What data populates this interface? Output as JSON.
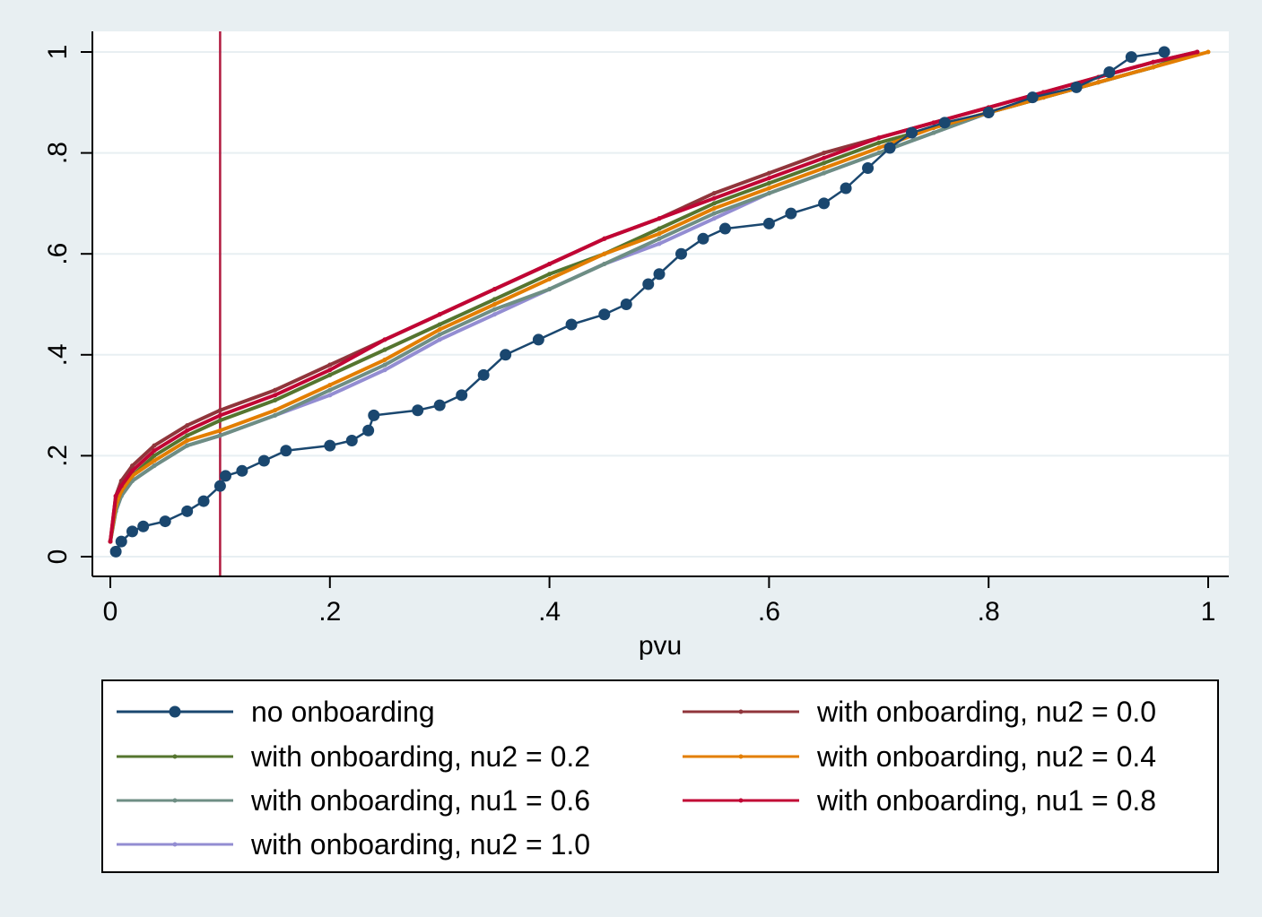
{
  "chart_data": {
    "type": "line",
    "xlabel": "pvu",
    "ylabel": "",
    "xlim": [
      0,
      1
    ],
    "ylim": [
      0,
      1
    ],
    "x_ticks": [
      {
        "value": 0,
        "label": "0"
      },
      {
        "value": 0.2,
        "label": ".2"
      },
      {
        "value": 0.4,
        "label": ".4"
      },
      {
        "value": 0.6,
        "label": ".6"
      },
      {
        "value": 0.8,
        "label": ".8"
      },
      {
        "value": 1,
        "label": "1"
      }
    ],
    "y_ticks": [
      {
        "value": 0,
        "label": "0"
      },
      {
        "value": 0.2,
        "label": ".2"
      },
      {
        "value": 0.4,
        "label": ".4"
      },
      {
        "value": 0.6,
        "label": ".6"
      },
      {
        "value": 0.8,
        "label": ".8"
      },
      {
        "value": 1,
        "label": "1"
      }
    ],
    "grid": "horizontal",
    "legend_position": "bottom",
    "reference_line": {
      "axis": "x",
      "value": 0.1,
      "color": "#b01a3f"
    },
    "series": [
      {
        "name": "no onboarding",
        "color": "#1a476f",
        "marker": "large",
        "points": [
          [
            0.005,
            0.01
          ],
          [
            0.01,
            0.03
          ],
          [
            0.02,
            0.05
          ],
          [
            0.03,
            0.06
          ],
          [
            0.05,
            0.07
          ],
          [
            0.07,
            0.09
          ],
          [
            0.085,
            0.11
          ],
          [
            0.1,
            0.14
          ],
          [
            0.105,
            0.16
          ],
          [
            0.12,
            0.17
          ],
          [
            0.14,
            0.19
          ],
          [
            0.16,
            0.21
          ],
          [
            0.2,
            0.22
          ],
          [
            0.22,
            0.23
          ],
          [
            0.235,
            0.25
          ],
          [
            0.24,
            0.28
          ],
          [
            0.28,
            0.29
          ],
          [
            0.3,
            0.3
          ],
          [
            0.32,
            0.32
          ],
          [
            0.34,
            0.36
          ],
          [
            0.36,
            0.4
          ],
          [
            0.39,
            0.43
          ],
          [
            0.42,
            0.46
          ],
          [
            0.45,
            0.48
          ],
          [
            0.47,
            0.5
          ],
          [
            0.49,
            0.54
          ],
          [
            0.5,
            0.56
          ],
          [
            0.52,
            0.6
          ],
          [
            0.54,
            0.63
          ],
          [
            0.56,
            0.65
          ],
          [
            0.6,
            0.66
          ],
          [
            0.62,
            0.68
          ],
          [
            0.65,
            0.7
          ],
          [
            0.67,
            0.73
          ],
          [
            0.69,
            0.77
          ],
          [
            0.71,
            0.81
          ],
          [
            0.73,
            0.84
          ],
          [
            0.76,
            0.86
          ],
          [
            0.8,
            0.88
          ],
          [
            0.84,
            0.91
          ],
          [
            0.88,
            0.93
          ],
          [
            0.91,
            0.96
          ],
          [
            0.93,
            0.99
          ],
          [
            0.96,
            1.0
          ]
        ]
      },
      {
        "name": "with onboarding, nu2 = 0.0",
        "color": "#90353b",
        "points": [
          [
            0,
            0.03
          ],
          [
            0.005,
            0.12
          ],
          [
            0.01,
            0.15
          ],
          [
            0.02,
            0.18
          ],
          [
            0.04,
            0.22
          ],
          [
            0.07,
            0.26
          ],
          [
            0.1,
            0.29
          ],
          [
            0.15,
            0.33
          ],
          [
            0.2,
            0.38
          ],
          [
            0.25,
            0.43
          ],
          [
            0.3,
            0.48
          ],
          [
            0.35,
            0.53
          ],
          [
            0.4,
            0.58
          ],
          [
            0.45,
            0.63
          ],
          [
            0.5,
            0.67
          ],
          [
            0.55,
            0.72
          ],
          [
            0.6,
            0.76
          ],
          [
            0.65,
            0.8
          ],
          [
            0.7,
            0.83
          ],
          [
            0.75,
            0.86
          ],
          [
            0.8,
            0.89
          ],
          [
            0.85,
            0.92
          ],
          [
            0.9,
            0.95
          ],
          [
            0.95,
            0.98
          ],
          [
            0.99,
            1.0
          ]
        ]
      },
      {
        "name": "with onboarding, nu2 = 0.2",
        "color": "#55752f",
        "points": [
          [
            0,
            0.03
          ],
          [
            0.005,
            0.1
          ],
          [
            0.01,
            0.13
          ],
          [
            0.02,
            0.16
          ],
          [
            0.04,
            0.2
          ],
          [
            0.07,
            0.24
          ],
          [
            0.1,
            0.27
          ],
          [
            0.15,
            0.31
          ],
          [
            0.2,
            0.36
          ],
          [
            0.25,
            0.41
          ],
          [
            0.3,
            0.46
          ],
          [
            0.35,
            0.51
          ],
          [
            0.4,
            0.56
          ],
          [
            0.45,
            0.6
          ],
          [
            0.5,
            0.65
          ],
          [
            0.55,
            0.7
          ],
          [
            0.6,
            0.74
          ],
          [
            0.65,
            0.78
          ],
          [
            0.7,
            0.82
          ],
          [
            0.75,
            0.85
          ],
          [
            0.8,
            0.88
          ],
          [
            0.85,
            0.91
          ],
          [
            0.9,
            0.94
          ],
          [
            0.95,
            0.97
          ],
          [
            0.99,
            1.0
          ]
        ]
      },
      {
        "name": "with onboarding, nu2 = 0.4",
        "color": "#e37e00",
        "points": [
          [
            0,
            0.03
          ],
          [
            0.005,
            0.1
          ],
          [
            0.01,
            0.13
          ],
          [
            0.02,
            0.16
          ],
          [
            0.04,
            0.19
          ],
          [
            0.07,
            0.23
          ],
          [
            0.1,
            0.25
          ],
          [
            0.15,
            0.29
          ],
          [
            0.2,
            0.34
          ],
          [
            0.25,
            0.39
          ],
          [
            0.3,
            0.45
          ],
          [
            0.35,
            0.5
          ],
          [
            0.4,
            0.55
          ],
          [
            0.45,
            0.6
          ],
          [
            0.5,
            0.64
          ],
          [
            0.55,
            0.69
          ],
          [
            0.6,
            0.73
          ],
          [
            0.65,
            0.77
          ],
          [
            0.7,
            0.81
          ],
          [
            0.75,
            0.85
          ],
          [
            0.8,
            0.88
          ],
          [
            0.85,
            0.91
          ],
          [
            0.9,
            0.94
          ],
          [
            0.95,
            0.97
          ],
          [
            1.0,
            1.0
          ]
        ]
      },
      {
        "name": "with onboarding, nu1 = 0.6",
        "color": "#6e8e84",
        "points": [
          [
            0,
            0.03
          ],
          [
            0.005,
            0.09
          ],
          [
            0.01,
            0.12
          ],
          [
            0.02,
            0.15
          ],
          [
            0.04,
            0.18
          ],
          [
            0.07,
            0.22
          ],
          [
            0.1,
            0.24
          ],
          [
            0.15,
            0.28
          ],
          [
            0.2,
            0.33
          ],
          [
            0.25,
            0.38
          ],
          [
            0.3,
            0.44
          ],
          [
            0.35,
            0.49
          ],
          [
            0.4,
            0.53
          ],
          [
            0.45,
            0.58
          ],
          [
            0.5,
            0.63
          ],
          [
            0.55,
            0.68
          ],
          [
            0.6,
            0.72
          ],
          [
            0.65,
            0.76
          ],
          [
            0.7,
            0.8
          ],
          [
            0.75,
            0.84
          ],
          [
            0.8,
            0.88
          ],
          [
            0.85,
            0.91
          ],
          [
            0.9,
            0.94
          ],
          [
            0.95,
            0.97
          ],
          [
            0.99,
            1.0
          ]
        ]
      },
      {
        "name": "with onboarding, nu1 = 0.8",
        "color": "#c10534",
        "points": [
          [
            0,
            0.03
          ],
          [
            0.005,
            0.12
          ],
          [
            0.01,
            0.14
          ],
          [
            0.02,
            0.17
          ],
          [
            0.04,
            0.21
          ],
          [
            0.07,
            0.25
          ],
          [
            0.1,
            0.28
          ],
          [
            0.15,
            0.32
          ],
          [
            0.2,
            0.37
          ],
          [
            0.25,
            0.43
          ],
          [
            0.3,
            0.48
          ],
          [
            0.35,
            0.53
          ],
          [
            0.4,
            0.58
          ],
          [
            0.45,
            0.63
          ],
          [
            0.5,
            0.67
          ],
          [
            0.55,
            0.71
          ],
          [
            0.6,
            0.75
          ],
          [
            0.65,
            0.79
          ],
          [
            0.7,
            0.83
          ],
          [
            0.75,
            0.86
          ],
          [
            0.8,
            0.89
          ],
          [
            0.85,
            0.92
          ],
          [
            0.9,
            0.95
          ],
          [
            0.95,
            0.98
          ],
          [
            0.99,
            1.0
          ]
        ]
      },
      {
        "name": "with onboarding, nu2 = 1.0",
        "color": "#938dd2",
        "points": [
          [
            0,
            0.03
          ],
          [
            0.005,
            0.09
          ],
          [
            0.01,
            0.12
          ],
          [
            0.02,
            0.15
          ],
          [
            0.04,
            0.18
          ],
          [
            0.07,
            0.22
          ],
          [
            0.1,
            0.24
          ],
          [
            0.15,
            0.28
          ],
          [
            0.2,
            0.32
          ],
          [
            0.25,
            0.37
          ],
          [
            0.3,
            0.43
          ],
          [
            0.35,
            0.48
          ],
          [
            0.4,
            0.53
          ],
          [
            0.45,
            0.58
          ],
          [
            0.5,
            0.62
          ],
          [
            0.55,
            0.67
          ],
          [
            0.6,
            0.72
          ],
          [
            0.65,
            0.76
          ],
          [
            0.7,
            0.8
          ],
          [
            0.75,
            0.84
          ],
          [
            0.8,
            0.88
          ],
          [
            0.85,
            0.91
          ],
          [
            0.9,
            0.94
          ],
          [
            0.95,
            0.97
          ],
          [
            0.99,
            1.0
          ]
        ]
      }
    ]
  },
  "legend_layout": [
    {
      "series": 0,
      "row": 0,
      "col": 0
    },
    {
      "series": 1,
      "row": 0,
      "col": 1
    },
    {
      "series": 2,
      "row": 1,
      "col": 0
    },
    {
      "series": 3,
      "row": 1,
      "col": 1
    },
    {
      "series": 4,
      "row": 2,
      "col": 0
    },
    {
      "series": 5,
      "row": 2,
      "col": 1
    },
    {
      "series": 6,
      "row": 3,
      "col": 0
    }
  ]
}
